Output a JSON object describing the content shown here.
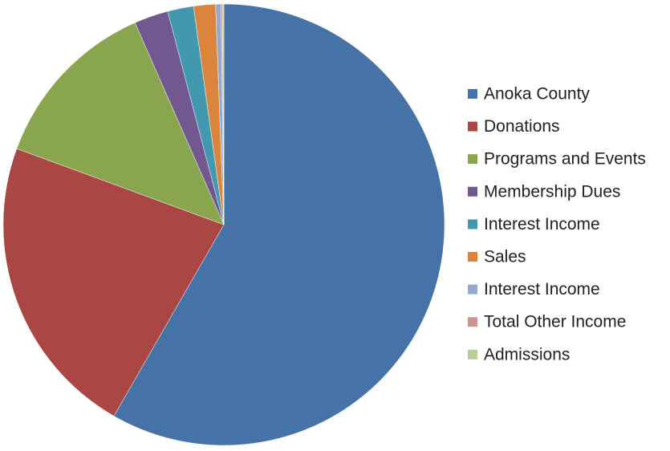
{
  "chart_data": {
    "type": "pie",
    "categories": [
      "Anoka County",
      "Donations",
      "Programs and Events",
      "Membership Dues",
      "Interest Income",
      "Sales",
      "Interest Income",
      "Total Other Income",
      "Admissions"
    ],
    "values": [
      58.3,
      22.3,
      12.8,
      2.5,
      1.9,
      1.6,
      0.4,
      0.1,
      0.1
    ],
    "colors": [
      "#4572a7",
      "#aa4643",
      "#89a54e",
      "#71588f",
      "#4198af",
      "#db843d",
      "#93a9cf",
      "#d19392",
      "#b9cd96"
    ],
    "legend": "right"
  }
}
